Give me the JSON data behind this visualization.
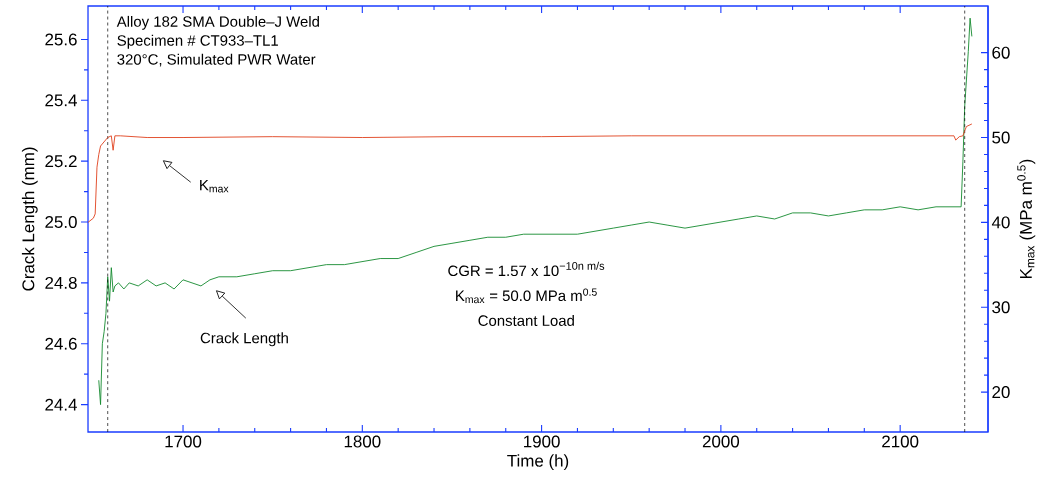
{
  "chart_data": {
    "type": "line",
    "xlabel": "Time (h)",
    "ylabel": "Crack Length (mm)",
    "y2label": "K$_{max}$ (MPa m$^{0.5}$)",
    "xlim": [
      1647,
      2149
    ],
    "xticks": [
      1700,
      1800,
      1900,
      2000,
      2100
    ],
    "ylim": [
      24.31,
      25.71
    ],
    "yticks": [
      24.4,
      24.6,
      24.8,
      {
        "value": 25.0,
        "label": "25.0"
      },
      25.2,
      25.4,
      25.6
    ],
    "y2lim": [
      15.3,
      65.5
    ],
    "y2ticks": [
      20,
      30,
      40,
      50,
      60
    ],
    "grid": false,
    "marker": "none",
    "series": [
      {
        "color": "#138a2e",
        "line_style": "solid",
        "x": [
          1653,
          1654,
          1655,
          1656,
          1657,
          1658,
          1659,
          1660,
          1661,
          1662,
          1664,
          1667,
          1670,
          1675,
          1680,
          1685,
          1690,
          1695,
          1700,
          1705,
          1710,
          1715,
          1720,
          1730,
          1740,
          1750,
          1760,
          1770,
          1780,
          1790,
          1800,
          1810,
          1820,
          1830,
          1840,
          1850,
          1860,
          1870,
          1880,
          1890,
          1900,
          1910,
          1920,
          1930,
          1940,
          1950,
          1960,
          1970,
          1980,
          1990,
          2000,
          2010,
          2020,
          2030,
          2040,
          2050,
          2060,
          2070,
          2080,
          2090,
          2100,
          2110,
          2120,
          2130,
          2134,
          2135,
          2136,
          2137,
          2138,
          2139,
          2140
        ],
        "values": [
          24.48,
          24.4,
          24.6,
          24.64,
          24.7,
          24.82,
          24.74,
          24.85,
          24.77,
          24.79,
          24.8,
          24.78,
          24.8,
          24.79,
          24.81,
          24.79,
          24.8,
          24.78,
          24.81,
          24.8,
          24.79,
          24.81,
          24.82,
          24.82,
          24.83,
          24.84,
          24.84,
          24.85,
          24.86,
          24.86,
          24.87,
          24.88,
          24.88,
          24.9,
          24.92,
          24.93,
          24.94,
          24.95,
          24.95,
          24.96,
          24.96,
          24.96,
          24.96,
          24.97,
          24.98,
          24.99,
          25.0,
          24.99,
          24.98,
          24.99,
          25.0,
          25.01,
          25.02,
          25.01,
          25.03,
          25.03,
          25.02,
          25.03,
          25.04,
          25.04,
          25.05,
          25.04,
          25.05,
          25.05,
          25.05,
          25.2,
          25.38,
          25.47,
          25.56,
          25.67,
          25.61
        ]
      },
      {
        "color": "#e0401c",
        "line_style": "solid",
        "axis": "y2",
        "x": [
          1647,
          1650,
          1651,
          1652,
          1653,
          1654,
          1656,
          1658,
          1660,
          1661,
          1662,
          1665,
          1680,
          1700,
          1750,
          1800,
          1850,
          1900,
          1950,
          2000,
          2050,
          2100,
          2130,
          2131,
          2133,
          2135,
          2136,
          2137,
          2140
        ],
        "values": [
          40.0,
          40.5,
          41.0,
          46.5,
          48.0,
          49.0,
          49.5,
          50.0,
          50.2,
          48.5,
          50.2,
          50.2,
          50.0,
          50.0,
          50.1,
          50.0,
          50.1,
          50.1,
          50.2,
          50.2,
          50.2,
          50.2,
          50.2,
          49.7,
          50.1,
          50.2,
          50.8,
          51.3,
          51.6
        ]
      }
    ],
    "ref_lines": [
      {
        "axis": "x",
        "value": 1658,
        "line_style": "dashed",
        "color": "#000000"
      },
      {
        "axis": "x",
        "value": 2136,
        "line_style": "dashed",
        "color": "#000000"
      }
    ],
    "annotations": [
      "Alloy 182 SMA Double–J Weld",
      "Specimen # CT933–TL1",
      "320°C, Simulated PWR Water",
      "K$_{max}$",
      "Crack Length",
      "\\mbox{CGR = 1.57 x 10}^{\\mbox{\\fontsize{11}{12}\\selectfont −10n m/s}}",
      "K$_{max}$ = 50.0 MPa m$^{0.5}$",
      "Constant Load"
    ]
  }
}
